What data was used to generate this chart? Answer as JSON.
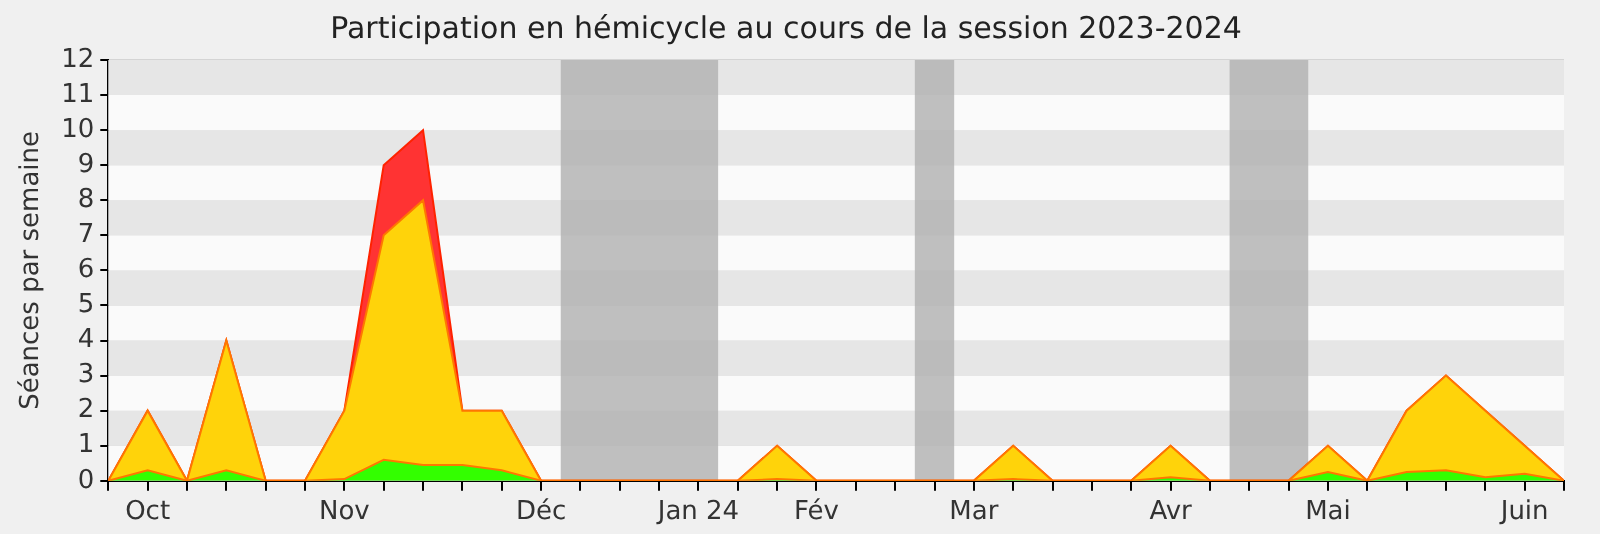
{
  "chart_data": {
    "type": "area",
    "title": "Participation en hémicycle au cours de la session 2023-2024",
    "ylabel": "Séances par semaine",
    "x": [
      "2023-09-29",
      "2023-10-06",
      "2023-10-13",
      "2023-10-20",
      "2023-10-27",
      "2023-11-03",
      "2023-11-10",
      "2023-11-17",
      "2023-11-24",
      "2023-12-01",
      "2023-12-08",
      "2023-12-15",
      "2023-12-22",
      "2023-12-29",
      "2024-01-05",
      "2024-01-12",
      "2024-01-19",
      "2024-01-26",
      "2024-02-02",
      "2024-02-09",
      "2024-02-16",
      "2024-02-23",
      "2024-03-01",
      "2024-03-08",
      "2024-03-15",
      "2024-03-22",
      "2024-03-29",
      "2024-04-05",
      "2024-04-12",
      "2024-04-19",
      "2024-04-26",
      "2024-05-03",
      "2024-05-10",
      "2024-05-17",
      "2024-05-24",
      "2024-05-31",
      "2024-06-07",
      "2024-06-14"
    ],
    "stacked": true,
    "series": [
      {
        "color": "#33ff00",
        "values": [
          0,
          0.3,
          0,
          0.3,
          0,
          0,
          0.05,
          0.6,
          0.45,
          0.45,
          0.3,
          0,
          0,
          0,
          0,
          0,
          0,
          0.05,
          0,
          0,
          0,
          0,
          0,
          0.05,
          0,
          0,
          0,
          0.1,
          0,
          0,
          0,
          0.25,
          0,
          0.25,
          0.3,
          0.1,
          0.2,
          0
        ]
      },
      {
        "color": "#ffd30a",
        "values": [
          0,
          1.7,
          0,
          3.7,
          0,
          0,
          1.95,
          6.4,
          7.55,
          1.55,
          1.7,
          0,
          0,
          0,
          0,
          0,
          0,
          0.95,
          0,
          0,
          0,
          0,
          0,
          0.95,
          0,
          0,
          0,
          0.9,
          0,
          0,
          0,
          0.75,
          0,
          1.75,
          2.7,
          1.9,
          0.8,
          0
        ]
      },
      {
        "color": "#ff3333",
        "values": [
          0,
          0,
          0,
          0,
          0,
          0,
          0,
          2,
          2,
          0,
          0,
          0,
          0,
          0,
          0,
          0,
          0,
          0,
          0,
          0,
          0,
          0,
          0,
          0,
          0,
          0,
          0,
          0,
          0,
          0,
          0,
          0,
          0,
          0,
          0,
          0,
          0,
          0
        ]
      }
    ],
    "xlim": [
      "2023-09-29",
      "2024-06-14"
    ],
    "xticks": [
      {
        "value": "2023-09-29",
        "label": null
      },
      {
        "value": "2023-10-06",
        "label": "Oct"
      },
      {
        "value": "2023-10-13",
        "label": null
      },
      {
        "value": "2023-10-20",
        "label": null
      },
      {
        "value": "2023-10-27",
        "label": null
      },
      {
        "value": "2023-11-03",
        "label": null
      },
      {
        "value": "2023-11-10",
        "label": "Nov"
      },
      {
        "value": "2023-11-17",
        "label": null
      },
      {
        "value": "2023-11-24",
        "label": null
      },
      {
        "value": "2023-12-01",
        "label": null
      },
      {
        "value": "2023-12-08",
        "label": null
      },
      {
        "value": "2023-12-15",
        "label": "Déc"
      },
      {
        "value": "2023-12-22",
        "label": null
      },
      {
        "value": "2023-12-29",
        "label": null
      },
      {
        "value": "2024-01-05",
        "label": null
      },
      {
        "value": "2024-01-12",
        "label": "Jan 24"
      },
      {
        "value": "2024-01-19",
        "label": null
      },
      {
        "value": "2024-01-26",
        "label": null
      },
      {
        "value": "2024-02-02",
        "label": "Fév"
      },
      {
        "value": "2024-02-09",
        "label": null
      },
      {
        "value": "2024-02-16",
        "label": null
      },
      {
        "value": "2024-02-23",
        "label": null
      },
      {
        "value": "2024-03-01",
        "label": "Mar"
      },
      {
        "value": "2024-03-08",
        "label": null
      },
      {
        "value": "2024-03-15",
        "label": null
      },
      {
        "value": "2024-03-22",
        "label": null
      },
      {
        "value": "2024-03-29",
        "label": null
      },
      {
        "value": "2024-04-05",
        "label": "Avr"
      },
      {
        "value": "2024-04-12",
        "label": null
      },
      {
        "value": "2024-04-19",
        "label": null
      },
      {
        "value": "2024-04-26",
        "label": null
      },
      {
        "value": "2024-05-03",
        "label": "Mai"
      },
      {
        "value": "2024-05-10",
        "label": null
      },
      {
        "value": "2024-05-17",
        "label": null
      },
      {
        "value": "2024-05-24",
        "label": null
      },
      {
        "value": "2024-05-31",
        "label": null
      },
      {
        "value": "2024-06-07",
        "label": "Juin"
      },
      {
        "value": "2024-06-14",
        "label": null
      }
    ],
    "ylim": [
      0,
      12
    ],
    "yticks": [
      0,
      1,
      2,
      3,
      4,
      5,
      6,
      7,
      8,
      9,
      10,
      11,
      12
    ],
    "grid": "y",
    "bands": [
      {
        "axis": "x",
        "from": "2023-12-18T12:00",
        "to": "2024-01-15T12:00",
        "color": "#b0b0b0"
      },
      {
        "axis": "x",
        "from": "2024-02-19T12:00",
        "to": "2024-02-26T12:00",
        "color": "#b0b0b0"
      },
      {
        "axis": "x",
        "from": "2024-04-15T12:00",
        "to": "2024-04-29T12:00",
        "color": "#b0b0b0"
      }
    ]
  }
}
